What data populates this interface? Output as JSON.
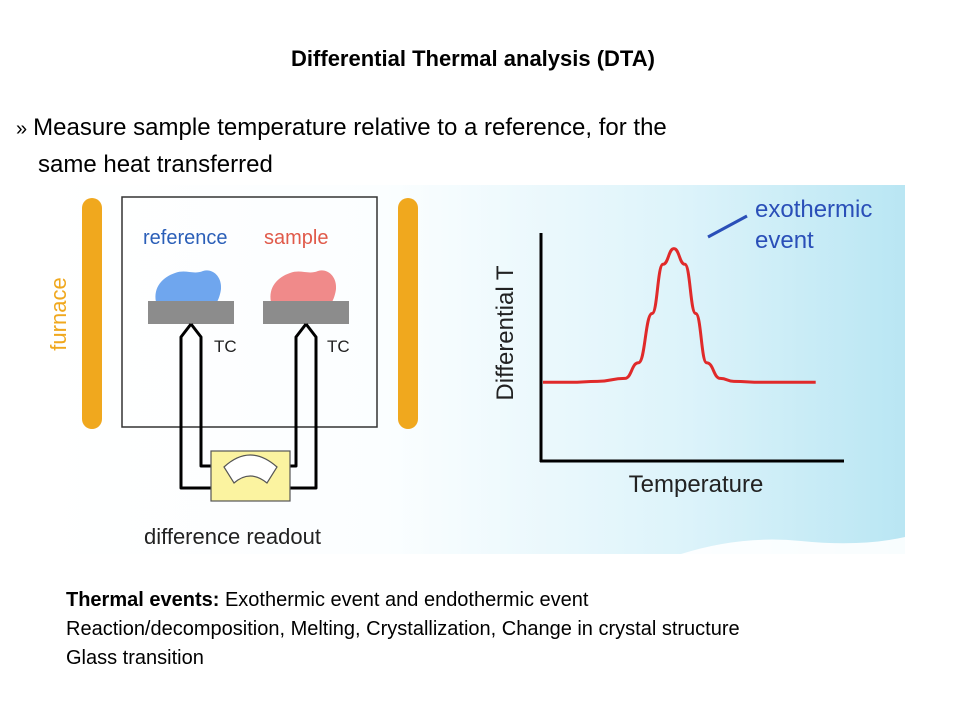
{
  "title": "Differential Thermal analysis (DTA)",
  "bullet": {
    "marker": "»",
    "line1": "Measure sample temperature relative to a reference, for the",
    "line2": "same heat transferred"
  },
  "diagram": {
    "furnace_label": "furnace",
    "reference_label": "reference",
    "sample_label": "sample",
    "tc_left": "TC",
    "tc_right": "TC",
    "readout_label": "difference readout",
    "colors": {
      "furnace": "#f0a81e",
      "reference": "#6fa6ee",
      "sample": "#f08a8a",
      "reference_text": "#2b5fb8",
      "sample_text": "#e05a4a",
      "furnace_text": "#f0a81e",
      "readout_box": "#fbf3a0",
      "curve": "#e02a2a",
      "annotation": "#2a4fb8"
    }
  },
  "chart_data": {
    "type": "line",
    "title": "",
    "xlabel": "Temperature",
    "ylabel": "Differential T",
    "annotation": [
      "exothermic",
      "event"
    ],
    "series": [
      {
        "x": [
          0,
          10,
          20,
          30,
          35,
          40,
          44,
          48,
          52,
          56,
          60,
          65,
          70,
          80,
          90,
          100
        ],
        "y": [
          4.0,
          4.0,
          4.05,
          4.2,
          5.0,
          7.5,
          10.0,
          10.8,
          10.0,
          7.5,
          5.0,
          4.2,
          4.05,
          4.0,
          4.0,
          4.0
        ]
      }
    ],
    "xlim": [
      0,
      110
    ],
    "ylim": [
      0,
      12
    ],
    "grid": false
  },
  "events": {
    "label": "Thermal events:",
    "line1_text": " Exothermic event and endothermic event",
    "line2": "Reaction/decomposition, Melting, Crystallization, Change in crystal structure",
    "line3": "Glass transition"
  }
}
